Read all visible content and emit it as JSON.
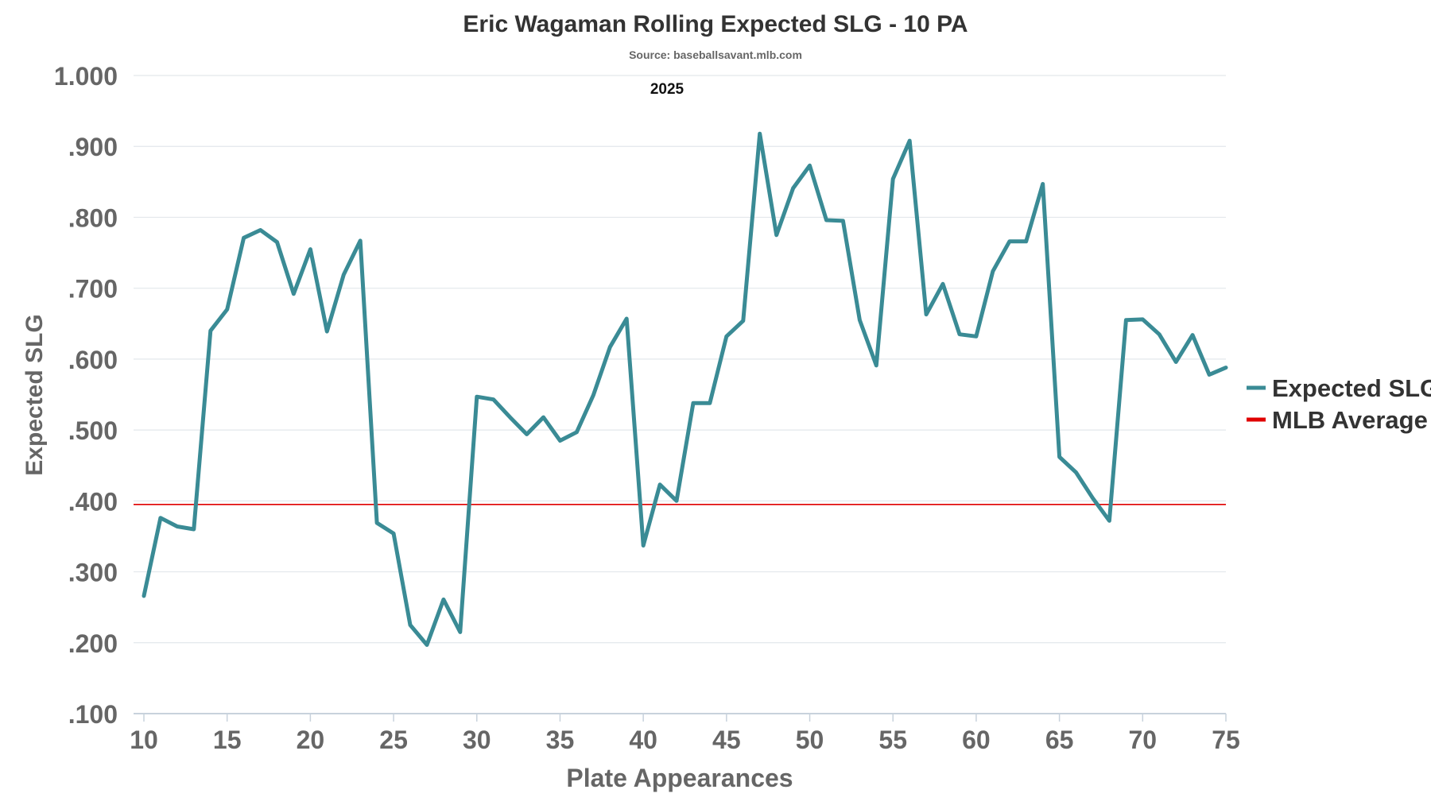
{
  "chart_data": {
    "type": "line",
    "title": "Eric Wagaman Rolling Expected SLG - 10 PA",
    "subtitle": "Source: baseballsavant.mlb.com",
    "annotation": "2025",
    "xlabel": "Plate Appearances",
    "ylabel": "Expected SLG",
    "xlim": [
      10,
      75
    ],
    "ylim": [
      0.1,
      1.0
    ],
    "x_ticks": [
      10,
      15,
      20,
      25,
      30,
      35,
      40,
      45,
      50,
      55,
      60,
      65,
      70,
      75
    ],
    "x_tick_labels": [
      "10",
      "15",
      "20",
      "25",
      "30",
      "35",
      "40",
      "45",
      "50",
      "55",
      "60",
      "65",
      "70",
      "75"
    ],
    "y_ticks": [
      0.1,
      0.2,
      0.3,
      0.4,
      0.5,
      0.6,
      0.7,
      0.8,
      0.9,
      1.0
    ],
    "y_tick_labels": [
      ".100",
      ".200",
      ".300",
      ".400",
      ".500",
      ".600",
      ".700",
      ".800",
      ".900",
      "1.000"
    ],
    "grid": true,
    "legend_position": "right",
    "series": [
      {
        "name": "Expected SLG",
        "color": "#3a8b95",
        "x": [
          10,
          11,
          12,
          13,
          14,
          15,
          16,
          17,
          18,
          19,
          20,
          21,
          22,
          23,
          24,
          25,
          26,
          27,
          28,
          29,
          30,
          31,
          32,
          33,
          34,
          35,
          36,
          37,
          38,
          39,
          40,
          41,
          42,
          43,
          44,
          45,
          46,
          47,
          48,
          49,
          50,
          51,
          52,
          53,
          54,
          55,
          56,
          57,
          58,
          59,
          60,
          61,
          62,
          63,
          64,
          65,
          66,
          67,
          68,
          69,
          70,
          71,
          72,
          73,
          74,
          75
        ],
        "y": [
          0.266,
          0.376,
          0.364,
          0.36,
          0.64,
          0.67,
          0.771,
          0.782,
          0.765,
          0.692,
          0.755,
          0.639,
          0.719,
          0.767,
          0.369,
          0.354,
          0.225,
          0.197,
          0.261,
          0.215,
          0.547,
          0.543,
          0.518,
          0.494,
          0.518,
          0.485,
          0.497,
          0.549,
          0.617,
          0.657,
          0.337,
          0.423,
          0.4,
          0.538,
          0.538,
          0.632,
          0.654,
          0.918,
          0.775,
          0.841,
          0.873,
          0.796,
          0.795,
          0.655,
          0.591,
          0.854,
          0.908,
          0.663,
          0.706,
          0.635,
          0.632,
          0.724,
          0.766,
          0.766,
          0.847,
          0.462,
          0.44,
          0.404,
          0.372,
          0.655,
          0.656,
          0.635,
          0.596,
          0.634,
          0.578,
          0.588
        ]
      }
    ],
    "reference_lines": [
      {
        "name": "MLB Average",
        "color": "#e00000",
        "y": 0.395
      }
    ]
  }
}
